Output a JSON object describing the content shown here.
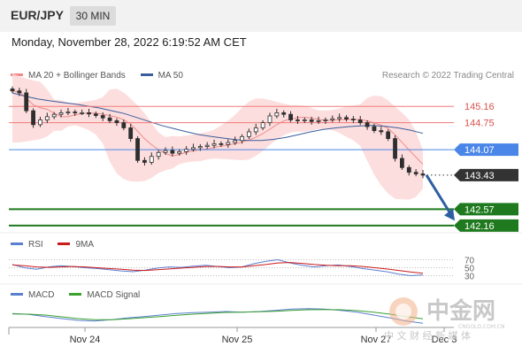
{
  "header": {
    "pair": "EUR/JPY",
    "timeframe": "30 MIN"
  },
  "datetime": "Monday, November 28, 2022 6:19:52 AM CET",
  "legend_main": [
    {
      "label": "MA 20 + Bollinger Bands",
      "color": "#f08a8a"
    },
    {
      "label": "MA 50",
      "color": "#3a5e9c"
    }
  ],
  "credit": "Research © 2022 Trading Central",
  "legend_rsi": [
    {
      "label": "RSI",
      "color": "#5b7fd0"
    },
    {
      "label": "9MA",
      "color": "#cc1b1b"
    }
  ],
  "legend_macd": [
    {
      "label": "MACD",
      "color": "#5b7fd0"
    },
    {
      "label": "MACD Signal",
      "color": "#3aa030"
    }
  ],
  "colors": {
    "resistance": "#f07a7a",
    "pivot": "#4a86e8",
    "support": "#1f7a1f",
    "current": "#333333",
    "arrow": "#2d5fa0",
    "candle": "#2e2e2e",
    "band": "#fcd3d3"
  },
  "watermark": {
    "brand": "中金网",
    "sub": "中 文 财 经 新 媒 体",
    "domain": "CNGOLD.COM.CN"
  },
  "chart_data": [
    {
      "type": "candlestick",
      "title": "EUR/JPY 30 MIN",
      "x": [
        "Nov 24",
        "Nov 25",
        "Nov 27",
        "Dec 3"
      ],
      "xlabel": "",
      "ylabel": "",
      "ylim": [
        142.0,
        145.7
      ],
      "levels": [
        {
          "name": "resistance",
          "value": 145.16,
          "label": "145.16"
        },
        {
          "name": "resistance",
          "value": 144.75,
          "label": "144.75"
        },
        {
          "name": "pivot",
          "value": 144.07,
          "label": "144.07"
        },
        {
          "name": "current",
          "value": 143.43,
          "label": "143.43"
        },
        {
          "name": "support",
          "value": 142.57,
          "label": "142.57"
        },
        {
          "name": "support",
          "value": 142.16,
          "label": "142.16"
        }
      ],
      "close_path": [
        145.55,
        145.5,
        145.05,
        144.7,
        144.82,
        144.9,
        144.96,
        145.0,
        145.02,
        145.0,
        145.0,
        144.97,
        144.93,
        144.87,
        144.8,
        144.75,
        144.62,
        144.35,
        143.8,
        143.75,
        143.9,
        144.0,
        144.05,
        143.98,
        144.02,
        144.08,
        144.12,
        144.15,
        144.18,
        144.22,
        144.2,
        144.25,
        144.3,
        144.4,
        144.52,
        144.62,
        144.75,
        144.92,
        145.0,
        144.96,
        144.82,
        144.8,
        144.82,
        144.78,
        144.8,
        144.82,
        144.85,
        144.88,
        144.84,
        144.82,
        144.75,
        144.65,
        144.55,
        144.52,
        144.35,
        143.85,
        143.62,
        143.5,
        143.46,
        143.43
      ],
      "ma50_path": [
        145.5,
        145.42,
        145.35,
        145.3,
        145.26,
        145.22,
        145.17,
        145.12,
        145.05,
        144.98,
        144.88,
        144.78,
        144.68,
        144.6,
        144.52,
        144.45,
        144.4,
        144.36,
        144.32,
        144.3,
        144.3,
        144.33,
        144.38,
        144.45,
        144.52,
        144.58,
        144.62,
        144.65,
        144.67,
        144.68,
        144.66,
        144.62,
        144.56,
        144.48
      ],
      "bands_shown": true,
      "forecast_arrow": {
        "from": 143.43,
        "to": 142.57
      }
    },
    {
      "type": "line",
      "name": "RSI",
      "levels": [
        {
          "value": 70,
          "label": "70"
        },
        {
          "value": 50,
          "label": "50"
        },
        {
          "value": 30,
          "label": "30"
        }
      ],
      "series": [
        {
          "name": "RSI",
          "values": [
            58,
            50,
            46,
            52,
            55,
            53,
            50,
            48,
            45,
            42,
            40,
            44,
            49,
            52,
            51,
            54,
            56,
            53,
            50,
            52,
            60,
            66,
            70,
            62,
            56,
            52,
            55,
            57,
            53,
            48,
            44,
            40,
            34,
            30,
            32
          ]
        },
        {
          "name": "9MA",
          "values": [
            57,
            55,
            52,
            51,
            52,
            53,
            52,
            50,
            48,
            46,
            44,
            43,
            45,
            47,
            49,
            51,
            53,
            53,
            52,
            52,
            55,
            58,
            62,
            63,
            61,
            58,
            56,
            55,
            55,
            53,
            50,
            47,
            43,
            39,
            36
          ]
        }
      ]
    },
    {
      "type": "line",
      "name": "MACD",
      "series": [
        {
          "name": "MACD",
          "values": [
            0.05,
            0.02,
            -0.05,
            -0.12,
            -0.18,
            -0.2,
            -0.16,
            -0.1,
            -0.05,
            0.0,
            0.05,
            0.08,
            0.1,
            0.12,
            0.1,
            0.12,
            0.16,
            0.2,
            0.22,
            0.2,
            0.16,
            0.1,
            0.0,
            -0.1,
            -0.2,
            -0.28
          ]
        },
        {
          "name": "MACD Signal",
          "values": [
            0.04,
            0.03,
            0.0,
            -0.06,
            -0.12,
            -0.16,
            -0.16,
            -0.13,
            -0.09,
            -0.05,
            -0.01,
            0.03,
            0.06,
            0.09,
            0.1,
            0.11,
            0.13,
            0.16,
            0.18,
            0.19,
            0.18,
            0.15,
            0.1,
            0.03,
            -0.05,
            -0.13
          ]
        }
      ]
    }
  ]
}
